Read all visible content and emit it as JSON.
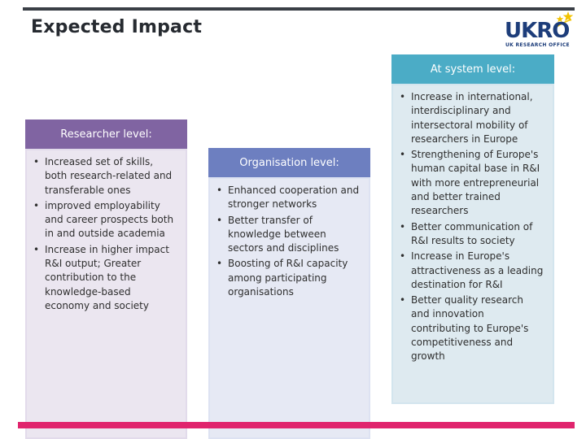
{
  "header": {
    "title": "Expected Impact"
  },
  "logo": {
    "word": "UKRO",
    "subtitle": "UK RESEARCH OFFICE",
    "star_color": "#f2c200",
    "word_color": "#1d3d7a"
  },
  "columns": {
    "researcher": {
      "heading": "Researcher level:",
      "accent": "#8064a2",
      "items": [
        "Increased set of skills, both research-related and transferable ones",
        "improved employability and career prospects both in and outside academia",
        "Increase in higher impact R&I output; Greater contribution to the knowledge-based economy and society"
      ]
    },
    "organisation": {
      "heading": "Organisation level:",
      "accent": "#6d7fc0",
      "items": [
        "Enhanced cooperation and stronger networks",
        "Better transfer of knowledge between sectors and disciplines",
        "Boosting of R&I capacity among participating organisations"
      ]
    },
    "system": {
      "heading": "At system level:",
      "accent": "#4bacc6",
      "items": [
        "Increase in international, interdisciplinary and intersectoral mobility of researchers in Europe",
        "Strengthening of Europe's human capital base in R&I with more entrepreneurial and better trained researchers",
        "Better communication of R&I results to society",
        "Increase in Europe's attractiveness as a leading destination for R&I",
        "Better quality research and innovation contributing to Europe's competitiveness and growth"
      ]
    }
  },
  "colors": {
    "bottom_bar": "#e0246d",
    "top_rule": "#3a3f46"
  }
}
